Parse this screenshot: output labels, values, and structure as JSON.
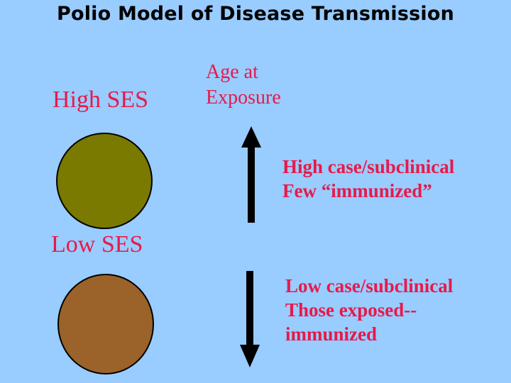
{
  "title": "Polio Model of Disease Transmission",
  "axis_label": {
    "line1": "Age at",
    "line2": "Exposure"
  },
  "high_ses": {
    "label": "High SES",
    "color": "#7a7a00",
    "note_line1": "High case/subclinical",
    "note_line2": "Few “immunized”",
    "arrow_direction": "up"
  },
  "low_ses": {
    "label": "Low SES",
    "color": "#9b6229",
    "note_line1": "Low case/subclinical",
    "note_line2": "Those exposed--",
    "note_line3": "immunized",
    "arrow_direction": "down"
  },
  "colors": {
    "background": "#99ccff",
    "accent_text": "#e8194a"
  }
}
